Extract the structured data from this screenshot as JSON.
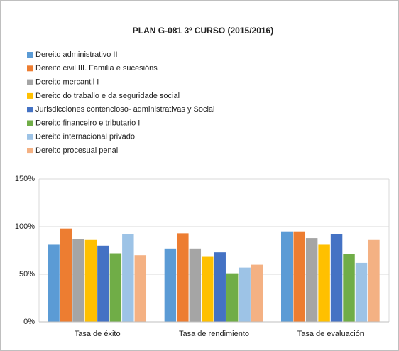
{
  "chart_data": {
    "type": "bar",
    "title": "PLAN G-081 3º CURSO  (2015/2016)",
    "categories": [
      "Tasa de éxito",
      "Tasa de rendimiento",
      "Tasa de evaluación"
    ],
    "series": [
      {
        "name": "Dereito administrativo II",
        "color": "#5b9bd5",
        "values": [
          81,
          77,
          95
        ]
      },
      {
        "name": "Dereito civil III. Familia e sucesións",
        "color": "#ed7d31",
        "values": [
          98,
          93,
          95
        ]
      },
      {
        "name": "Dereito mercantil I",
        "color": "#a5a5a5",
        "values": [
          87,
          77,
          88
        ]
      },
      {
        "name": "Dereito do traballo e da seguridade social",
        "color": "#ffc000",
        "values": [
          86,
          69,
          81
        ]
      },
      {
        "name": "Jurisdicciones contencioso- administrativas y Social",
        "color": "#4472c4",
        "values": [
          80,
          73,
          92
        ]
      },
      {
        "name": "Dereito financeiro e tributario I",
        "color": "#70ad47",
        "values": [
          72,
          51,
          71
        ]
      },
      {
        "name": "Dereito internacional privado",
        "color": "#9dc3e6",
        "values": [
          92,
          57,
          62
        ]
      },
      {
        "name": "Dereito procesual penal",
        "color": "#f4b183",
        "values": [
          70,
          60,
          86
        ]
      }
    ],
    "ylim": [
      0,
      150
    ],
    "yticks": [
      {
        "value": 0,
        "label": "0%"
      },
      {
        "value": 50,
        "label": "50%"
      },
      {
        "value": 100,
        "label": "100%"
      },
      {
        "value": 150,
        "label": "150%"
      }
    ],
    "grid": true,
    "legend": "top"
  }
}
